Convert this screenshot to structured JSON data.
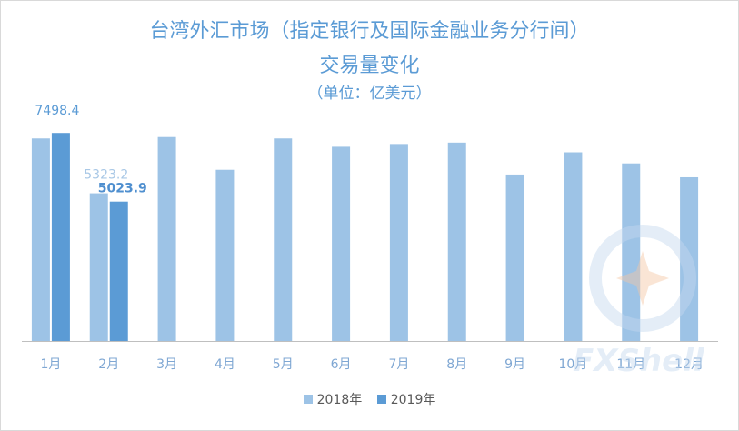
{
  "chart_data": {
    "type": "bar",
    "title": "台湾外汇市场（指定银行及国际金融业务分行间）",
    "subtitle": "交易量变化",
    "unit_label": "（单位：亿美元）",
    "categories": [
      "1月",
      "2月",
      "3月",
      "4月",
      "5月",
      "6月",
      "7月",
      "8月",
      "9月",
      "10月",
      "11月",
      "12月"
    ],
    "series": [
      {
        "name": "2018年",
        "color": "#9dc3e6",
        "values": [
          7300,
          5323.2,
          7350,
          6170,
          7300,
          7000,
          7100,
          7150,
          6000,
          6800,
          6400,
          5900
        ]
      },
      {
        "name": "2019年",
        "color": "#5b9bd5",
        "values": [
          7498.4,
          5023.9,
          null,
          null,
          null,
          null,
          null,
          null,
          null,
          null,
          null,
          null
        ]
      }
    ],
    "data_labels": [
      {
        "series": 1,
        "index": 0,
        "text": "7498.4"
      },
      {
        "series": 0,
        "index": 1,
        "text": "5323.2"
      },
      {
        "series": 1,
        "index": 1,
        "text": "5023.9"
      }
    ],
    "ylim": [
      0,
      7800
    ],
    "grid": false,
    "legend_position": "bottom"
  },
  "watermark": {
    "text": "FXShell",
    "color": "#5b9bd5"
  }
}
